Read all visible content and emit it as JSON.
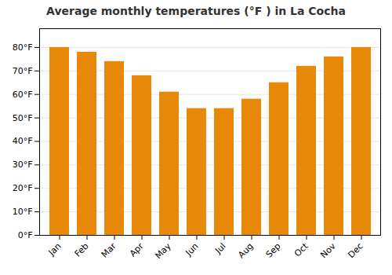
{
  "chart_data": {
    "type": "bar",
    "title": "Average monthly temperatures (°F ) in La Cocha",
    "categories": [
      "Jan",
      "Feb",
      "Mar",
      "Apr",
      "May",
      "Jun",
      "Jul",
      "Aug",
      "Sep",
      "Oct",
      "Nov",
      "Dec"
    ],
    "values": [
      80,
      78,
      74,
      68,
      61,
      54,
      54,
      58,
      65,
      72,
      76,
      80
    ],
    "color": "#E8890A",
    "ylim": [
      0,
      88
    ],
    "yticks": [
      {
        "value": 0,
        "label": "0°F"
      },
      {
        "value": 10,
        "label": "10°F"
      },
      {
        "value": 20,
        "label": "20°F"
      },
      {
        "value": 30,
        "label": "30°F"
      },
      {
        "value": 40,
        "label": "40°F"
      },
      {
        "value": 50,
        "label": "50°F"
      },
      {
        "value": 60,
        "label": "60°F"
      },
      {
        "value": 70,
        "label": "70°F"
      },
      {
        "value": 80,
        "label": "80°F"
      }
    ],
    "grid": true
  }
}
